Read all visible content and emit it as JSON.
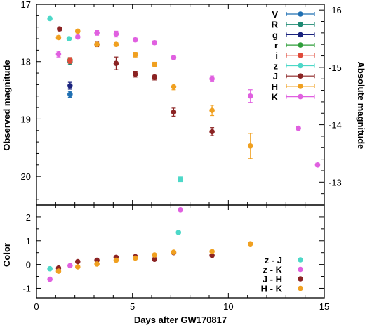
{
  "chart_data": [
    {
      "type": "scatter",
      "panel": "magnitudes",
      "xlabel": "",
      "ylabel": "Observed magnitude",
      "ylabel_right": "Absolute magnitude",
      "xlim": [
        0,
        15
      ],
      "ylim": [
        20.5,
        17
      ],
      "ylim_right": [
        -12.6,
        -16.1
      ],
      "xticks": [
        0,
        5,
        10,
        15
      ],
      "yticks": [
        17,
        18,
        19,
        20
      ],
      "yticks_right": [
        -16,
        -15,
        -14,
        -13
      ],
      "ytick_labels": [
        "17",
        "18",
        "19",
        "20"
      ],
      "ytick_labels_right": [
        "-16",
        "-15",
        "-14",
        "-13"
      ],
      "legend_position": "top-right",
      "series": [
        {
          "name": "V",
          "color": "#1f6fb2",
          "points": [
            [
              1.75,
              18.57
            ]
          ],
          "err": [
            0.05
          ]
        },
        {
          "name": "R",
          "color": "#1e8a73",
          "points": [
            [
              1.75,
              18.0
            ]
          ],
          "err": [
            0.05
          ]
        },
        {
          "name": "g",
          "color": "#1a237e",
          "points": [
            [
              1.75,
              18.42
            ]
          ],
          "err": [
            0.06
          ]
        },
        {
          "name": "r",
          "color": "#2e9e3a",
          "points": [
            [
              1.75,
              17.97
            ]
          ],
          "err": [
            0.04
          ]
        },
        {
          "name": "i",
          "color": "#e04a3a",
          "points": [
            [
              1.75,
              17.98
            ]
          ],
          "err": [
            0.05
          ]
        },
        {
          "name": "z",
          "color": "#4dd8c8",
          "points": [
            [
              0.7,
              17.25
            ],
            [
              1.7,
              17.6
            ],
            [
              7.5,
              20.05
            ]
          ],
          "err": [
            0,
            0,
            0.04
          ]
        },
        {
          "name": "J",
          "color": "#8b2323",
          "points": [
            [
              1.2,
              17.43
            ],
            [
              3.15,
              17.7
            ],
            [
              4.15,
              18.03
            ],
            [
              5.15,
              18.22
            ],
            [
              6.15,
              18.27
            ],
            [
              7.15,
              18.88
            ],
            [
              9.15,
              19.22
            ]
          ],
          "err": [
            0.03,
            0.04,
            0.11,
            0.05,
            0.05,
            0.07,
            0.07
          ]
        },
        {
          "name": "H",
          "color": "#f0a020",
          "points": [
            [
              1.15,
              17.58
            ],
            [
              2.15,
              17.47
            ],
            [
              3.15,
              17.7
            ],
            [
              4.15,
              17.7
            ],
            [
              5.15,
              17.88
            ],
            [
              6.15,
              18.05
            ],
            [
              7.15,
              18.44
            ],
            [
              9.15,
              18.85
            ],
            [
              11.15,
              19.47
            ]
          ],
          "err": [
            0.03,
            0.03,
            0.03,
            0.03,
            0.04,
            0.04,
            0.05,
            0.09,
            0.22
          ]
        },
        {
          "name": "K",
          "color": "#e060e0",
          "points": [
            [
              1.15,
              17.87
            ],
            [
              2.15,
              17.57
            ],
            [
              3.15,
              17.5
            ],
            [
              4.15,
              17.52
            ],
            [
              5.15,
              17.62
            ],
            [
              6.15,
              17.67
            ],
            [
              7.15,
              17.93
            ],
            [
              9.15,
              18.3
            ],
            [
              11.15,
              18.6
            ],
            [
              13.65,
              19.16
            ],
            [
              14.65,
              19.8
            ]
          ],
          "err": [
            0.05,
            0.03,
            0.04,
            0.05,
            0.03,
            0.03,
            0.03,
            0.05,
            0.11,
            0.03,
            0.03
          ]
        }
      ]
    },
    {
      "type": "scatter",
      "panel": "color",
      "xlabel": "Days after GW170817",
      "ylabel": "Color",
      "xlim": [
        0,
        15
      ],
      "ylim": [
        -1.4,
        2.5
      ],
      "xticks": [
        0,
        5,
        10,
        15
      ],
      "xtick_labels": [
        "0",
        "5",
        "10",
        "15"
      ],
      "yticks": [
        -1,
        0,
        1,
        2
      ],
      "ytick_labels": [
        "-1",
        "0",
        "1",
        "2"
      ],
      "legend_position": "bottom-right",
      "series": [
        {
          "name": "z - J",
          "color": "#4dd8c8",
          "points": [
            [
              0.7,
              -0.18
            ],
            [
              7.4,
              1.35
            ]
          ]
        },
        {
          "name": "z - K",
          "color": "#e060e0",
          "points": [
            [
              0.7,
              -0.62
            ],
            [
              1.75,
              -0.05
            ],
            [
              7.5,
              2.3
            ]
          ]
        },
        {
          "name": "J - H",
          "color": "#8b2323",
          "points": [
            [
              1.15,
              -0.15
            ],
            [
              2.15,
              0.12
            ],
            [
              3.15,
              0.18
            ],
            [
              4.15,
              0.3
            ],
            [
              5.15,
              0.33
            ],
            [
              6.15,
              0.22
            ],
            [
              7.15,
              0.5
            ],
            [
              9.15,
              0.38
            ]
          ]
        },
        {
          "name": "H - K",
          "color": "#f0a020",
          "points": [
            [
              1.15,
              -0.28
            ],
            [
              2.15,
              -0.1
            ],
            [
              3.15,
              0.02
            ],
            [
              4.15,
              0.18
            ],
            [
              5.15,
              0.27
            ],
            [
              6.15,
              0.4
            ],
            [
              7.15,
              0.52
            ],
            [
              9.15,
              0.55
            ],
            [
              11.15,
              0.87
            ]
          ]
        }
      ]
    }
  ]
}
